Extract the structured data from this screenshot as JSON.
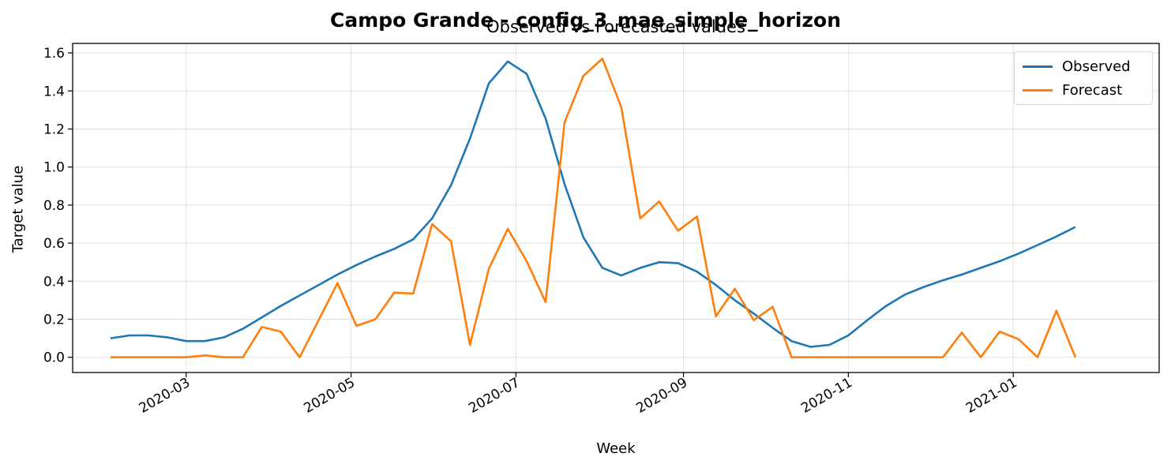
{
  "figure": {
    "suptitle": "Campo Grande - config_3_mae_simple_horizon",
    "subtitle": "Observed vs Forecasted values"
  },
  "chart_data": {
    "type": "line",
    "title": "Observed vs Forecasted values",
    "xlabel": "Week",
    "ylabel": "Target value",
    "grid": true,
    "legend_position": "upper right",
    "ylim": [
      -0.08,
      1.65
    ],
    "yticks": [
      "0.0",
      "0.2",
      "0.4",
      "0.6",
      "0.8",
      "1.0",
      "1.2",
      "1.4",
      "1.6"
    ],
    "xlim": [
      "2020-01-19",
      "2021-02-24"
    ],
    "xticks": [
      "2020-03",
      "2020-05",
      "2020-07",
      "2020-09",
      "2020-11",
      "2021-01"
    ],
    "x": [
      "2020-02-02",
      "2020-02-09",
      "2020-02-16",
      "2020-02-23",
      "2020-03-01",
      "2020-03-08",
      "2020-03-15",
      "2020-03-22",
      "2020-03-29",
      "2020-04-05",
      "2020-04-12",
      "2020-04-19",
      "2020-04-26",
      "2020-05-03",
      "2020-05-10",
      "2020-05-17",
      "2020-05-24",
      "2020-05-31",
      "2020-06-07",
      "2020-06-14",
      "2020-06-21",
      "2020-06-28",
      "2020-07-05",
      "2020-07-12",
      "2020-07-19",
      "2020-07-26",
      "2020-08-02",
      "2020-08-09",
      "2020-08-16",
      "2020-08-23",
      "2020-08-30",
      "2020-09-06",
      "2020-09-13",
      "2020-09-20",
      "2020-09-27",
      "2020-10-04",
      "2020-10-11",
      "2020-10-18",
      "2020-10-25",
      "2020-11-01",
      "2020-11-08",
      "2020-11-15",
      "2020-11-22",
      "2020-11-29",
      "2020-12-06",
      "2020-12-13",
      "2020-12-20",
      "2020-12-27",
      "2021-01-03",
      "2021-01-10",
      "2021-01-17",
      "2021-01-24"
    ],
    "series": [
      {
        "name": "Observed",
        "color": "#1f77b4",
        "values": [
          0.1,
          0.115,
          0.115,
          0.105,
          0.085,
          0.085,
          0.105,
          0.15,
          0.21,
          0.27,
          0.325,
          0.38,
          0.435,
          0.485,
          0.53,
          0.57,
          0.62,
          0.73,
          0.905,
          1.15,
          1.44,
          1.555,
          1.49,
          1.255,
          0.91,
          0.63,
          0.47,
          0.43,
          0.47,
          0.5,
          0.495,
          0.45,
          0.38,
          0.3,
          0.23,
          0.155,
          0.085,
          0.055,
          0.065,
          0.115,
          0.195,
          0.27,
          0.33,
          0.37,
          0.405,
          0.435,
          0.47,
          0.505,
          0.545,
          0.59,
          0.635,
          0.685
        ]
      },
      {
        "name": "Forecast",
        "color": "#ff7f0e",
        "values": [
          0.0,
          0.0,
          0.0,
          0.0,
          0.0,
          0.01,
          0.0,
          0.0,
          0.16,
          0.135,
          0.0,
          0.195,
          0.39,
          0.165,
          0.2,
          0.34,
          0.335,
          0.7,
          0.61,
          0.065,
          0.465,
          0.675,
          0.505,
          0.29,
          1.235,
          1.48,
          1.57,
          1.315,
          0.73,
          0.82,
          0.665,
          0.74,
          0.215,
          0.36,
          0.195,
          0.265,
          0.0,
          0.0,
          0.0,
          0.0,
          0.0,
          0.0,
          0.0,
          0.0,
          0.0,
          0.13,
          0.0,
          0.135,
          0.095,
          0.0,
          0.245,
          0.0
        ]
      }
    ]
  }
}
